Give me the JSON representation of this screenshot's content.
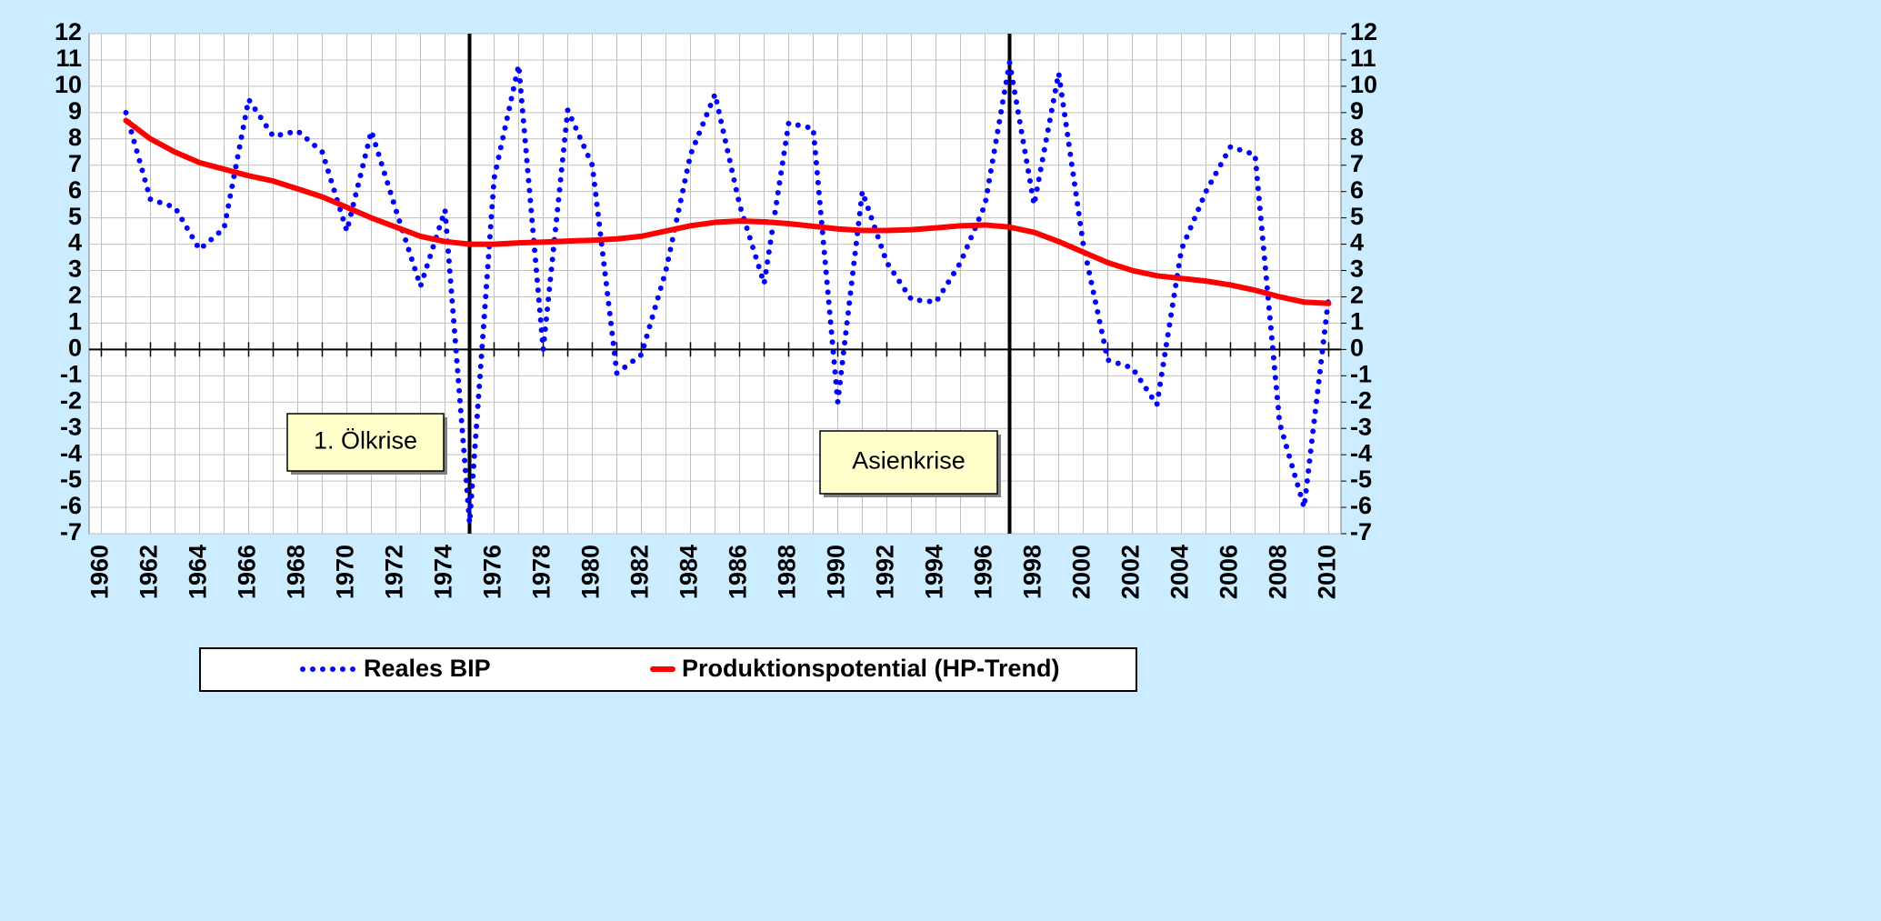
{
  "chart_data": {
    "type": "line",
    "x": [
      1961,
      1962,
      1963,
      1964,
      1965,
      1966,
      1967,
      1968,
      1969,
      1970,
      1971,
      1972,
      1973,
      1974,
      1975,
      1976,
      1977,
      1978,
      1979,
      1980,
      1981,
      1982,
      1983,
      1984,
      1985,
      1986,
      1987,
      1988,
      1989,
      1990,
      1991,
      1992,
      1993,
      1994,
      1995,
      1996,
      1997,
      1998,
      1999,
      2000,
      2001,
      2002,
      2003,
      2004,
      2005,
      2006,
      2007,
      2008,
      2009,
      2010
    ],
    "series": [
      {
        "name": "Reales BIP",
        "color": "#0000ff",
        "style": "dotted",
        "values": [
          9.0,
          5.7,
          5.4,
          3.8,
          4.6,
          9.5,
          8.1,
          8.3,
          7.5,
          4.5,
          8.3,
          5.3,
          2.4,
          5.3,
          -6.6,
          6.5,
          10.8,
          0.0,
          9.1,
          7.0,
          -0.9,
          -0.2,
          3.0,
          7.4,
          9.7,
          5.5,
          2.5,
          8.6,
          8.4,
          -2.0,
          6.0,
          3.3,
          1.9,
          1.8,
          3.3,
          5.5,
          10.9,
          5.5,
          10.5,
          4.0,
          -0.4,
          -0.7,
          -2.1,
          3.8,
          6.0,
          7.7,
          7.4,
          -2.8,
          -6.0,
          2.0
        ]
      },
      {
        "name": "Produktionspotential (HP-Trend)",
        "color": "#ff0000",
        "style": "solid",
        "values": [
          8.7,
          8.0,
          7.5,
          7.1,
          6.85,
          6.6,
          6.4,
          6.1,
          5.8,
          5.4,
          5.0,
          4.65,
          4.3,
          4.1,
          4.0,
          4.0,
          4.05,
          4.08,
          4.12,
          4.15,
          4.2,
          4.3,
          4.5,
          4.7,
          4.83,
          4.88,
          4.85,
          4.78,
          4.68,
          4.58,
          4.52,
          4.52,
          4.55,
          4.62,
          4.7,
          4.73,
          4.65,
          4.45,
          4.1,
          3.7,
          3.3,
          3.0,
          2.8,
          2.7,
          2.6,
          2.45,
          2.25,
          2.0,
          1.8,
          1.75
        ]
      }
    ],
    "event_lines": [
      1975,
      1997
    ],
    "annotations": [
      "1. Ölkrise",
      "Asienkrise"
    ],
    "xlim": [
      1959.5,
      2010.5
    ],
    "xticks": [
      1960,
      1962,
      1964,
      1966,
      1968,
      1970,
      1972,
      1974,
      1976,
      1978,
      1980,
      1982,
      1984,
      1986,
      1988,
      1990,
      1992,
      1994,
      1996,
      1998,
      2000,
      2002,
      2004,
      2006,
      2008,
      2010
    ],
    "ylim": [
      -7,
      12
    ],
    "yticks": [
      -7,
      -6,
      -5,
      -4,
      -3,
      -2,
      -1,
      0,
      1,
      2,
      3,
      4,
      5,
      6,
      7,
      8,
      9,
      10,
      11,
      12
    ],
    "y2lim": [
      -7,
      12
    ],
    "y2ticks": [
      -7,
      -6,
      -5,
      -4,
      -3,
      -2,
      -1,
      0,
      1,
      2,
      3,
      4,
      5,
      6,
      7,
      8,
      9,
      10,
      11,
      12
    ],
    "grid": true,
    "legend": "bottom"
  }
}
